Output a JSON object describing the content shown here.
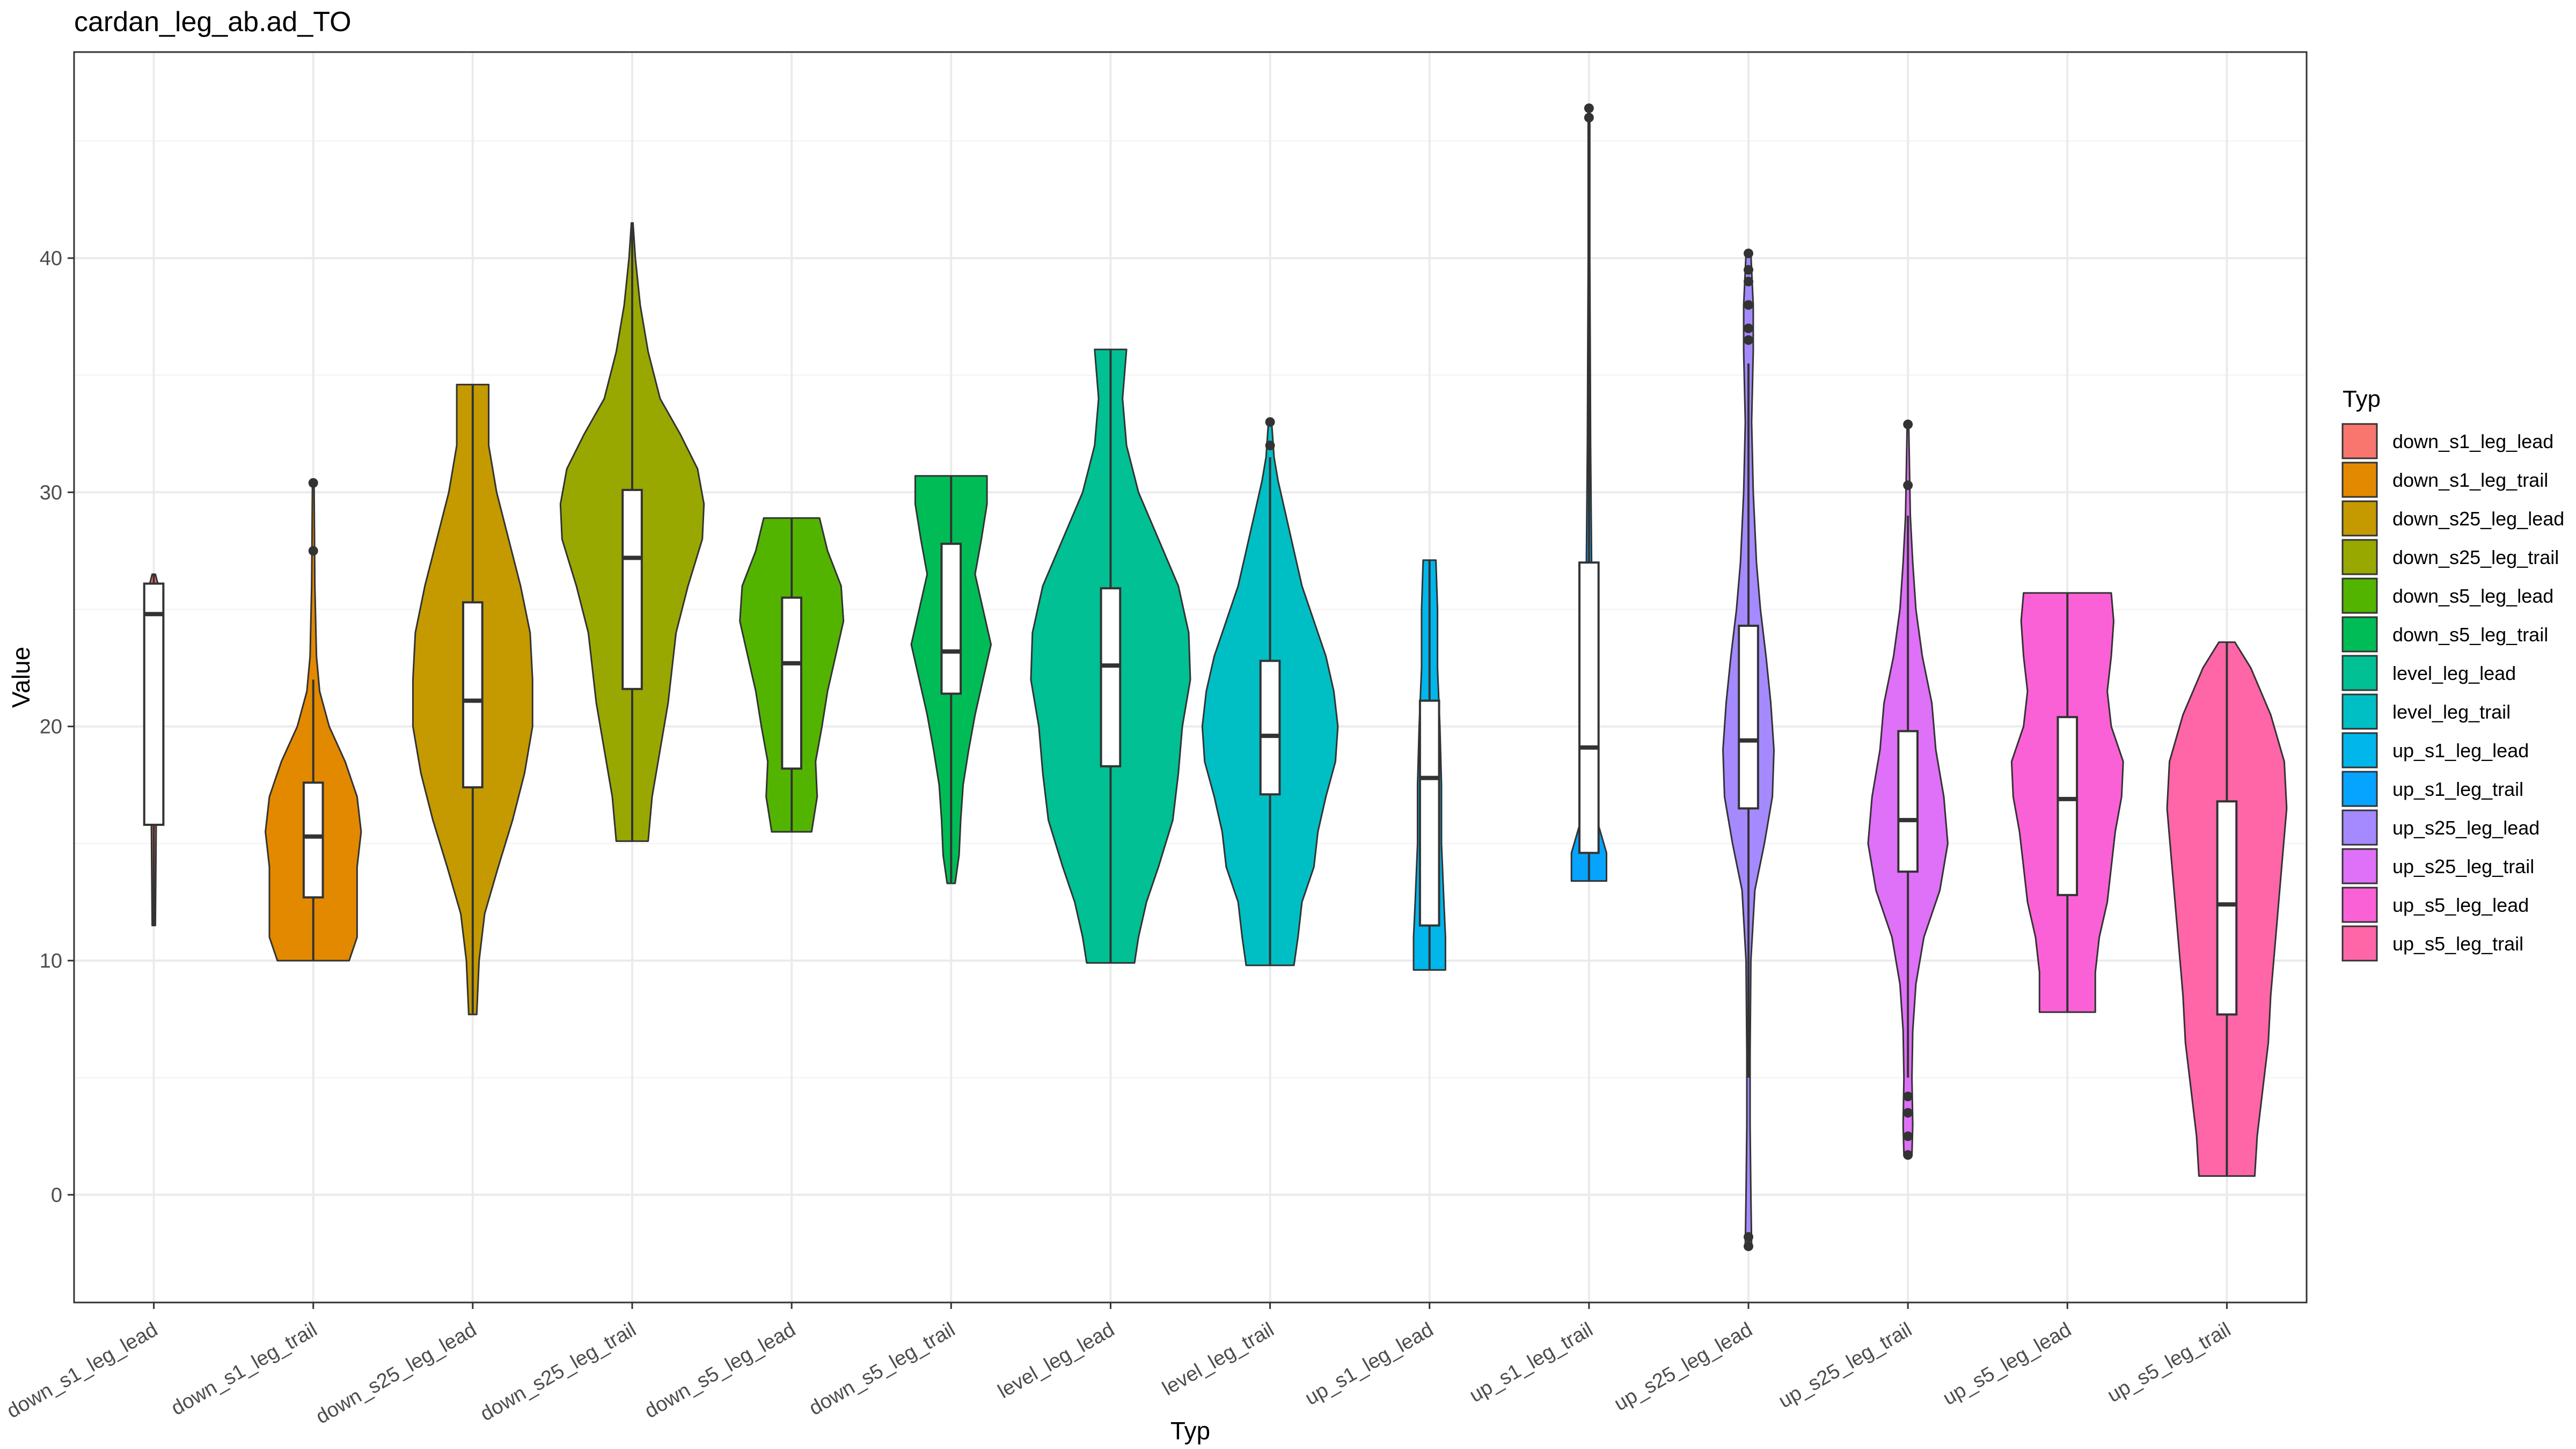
{
  "chart_data": {
    "type": "violin",
    "title": "cardan_leg_ab.ad_TO",
    "xlabel": "Typ",
    "ylabel": "Value",
    "ylim": [
      -4.6,
      48.8
    ],
    "yticks": [
      0,
      10,
      20,
      30,
      40
    ],
    "grid": true,
    "legend": {
      "title": "Typ",
      "position": "right"
    },
    "categories": [
      "down_s1_leg_lead",
      "down_s1_leg_trail",
      "down_s25_leg_lead",
      "down_s25_leg_trail",
      "down_s5_leg_lead",
      "down_s5_leg_trail",
      "level_leg_lead",
      "level_leg_trail",
      "up_s1_leg_lead",
      "up_s1_leg_trail",
      "up_s25_leg_lead",
      "up_s25_leg_trail",
      "up_s5_leg_lead",
      "up_s5_leg_trail"
    ],
    "colors": [
      "#F8766D",
      "#E38900",
      "#C49A00",
      "#99A800",
      "#53B400",
      "#00BC56",
      "#00C094",
      "#00BFC4",
      "#00B6EB",
      "#06A4FF",
      "#A58AFF",
      "#DF70F8",
      "#FB61D7",
      "#FF66A8"
    ],
    "series": [
      {
        "name": "down_s1_leg_lead",
        "min": 11.5,
        "max": 26.5,
        "q1": 15.8,
        "median": 24.8,
        "q3": 26.1,
        "whisker_low": 11.5,
        "whisker_high": 26.5,
        "outliers": [],
        "density": [
          [
            11.5,
            0.02
          ],
          [
            15.8,
            0.03
          ],
          [
            20,
            0.04
          ],
          [
            24.8,
            0.05
          ],
          [
            26.1,
            0.05
          ],
          [
            26.5,
            0.02
          ]
        ]
      },
      {
        "name": "down_s1_leg_trail",
        "min": 10.0,
        "max": 30.4,
        "q1": 12.7,
        "median": 15.3,
        "q3": 17.6,
        "whisker_low": 10.0,
        "whisker_high": 22.0,
        "outliers": [
          27.5,
          30.4
        ],
        "density": [
          [
            10,
            0.45
          ],
          [
            11,
            0.55
          ],
          [
            12.5,
            0.55
          ],
          [
            14,
            0.55
          ],
          [
            15.5,
            0.6
          ],
          [
            17,
            0.55
          ],
          [
            18.5,
            0.4
          ],
          [
            20,
            0.2
          ],
          [
            21.5,
            0.08
          ],
          [
            23,
            0.04
          ],
          [
            26,
            0.02
          ],
          [
            30.4,
            0.01
          ]
        ]
      },
      {
        "name": "down_s25_leg_lead",
        "min": 7.7,
        "max": 34.6,
        "q1": 17.4,
        "median": 21.1,
        "q3": 25.3,
        "whisker_low": 7.7,
        "whisker_high": 34.6,
        "outliers": [],
        "density": [
          [
            7.7,
            0.05
          ],
          [
            10,
            0.08
          ],
          [
            12,
            0.15
          ],
          [
            14,
            0.32
          ],
          [
            16,
            0.5
          ],
          [
            18,
            0.65
          ],
          [
            20,
            0.75
          ],
          [
            22,
            0.75
          ],
          [
            24,
            0.72
          ],
          [
            26,
            0.6
          ],
          [
            28,
            0.45
          ],
          [
            30,
            0.3
          ],
          [
            32,
            0.2
          ],
          [
            34.6,
            0.2
          ]
        ]
      },
      {
        "name": "down_s25_leg_trail",
        "min": 15.1,
        "max": 41.5,
        "q1": 21.6,
        "median": 27.2,
        "q3": 30.1,
        "whisker_low": 15.1,
        "whisker_high": 41.5,
        "outliers": [],
        "density": [
          [
            15.1,
            0.2
          ],
          [
            17,
            0.25
          ],
          [
            19,
            0.35
          ],
          [
            21,
            0.45
          ],
          [
            22.5,
            0.5
          ],
          [
            24,
            0.55
          ],
          [
            26,
            0.7
          ],
          [
            28,
            0.88
          ],
          [
            29.5,
            0.9
          ],
          [
            31,
            0.82
          ],
          [
            32.5,
            0.6
          ],
          [
            34,
            0.35
          ],
          [
            36,
            0.2
          ],
          [
            38,
            0.1
          ],
          [
            40,
            0.04
          ],
          [
            41.5,
            0.01
          ]
        ]
      },
      {
        "name": "down_s5_leg_lead",
        "min": 15.5,
        "max": 28.9,
        "q1": 18.2,
        "median": 22.7,
        "q3": 25.5,
        "whisker_low": 15.5,
        "whisker_high": 28.9,
        "outliers": [],
        "density": [
          [
            15.5,
            0.25
          ],
          [
            17,
            0.32
          ],
          [
            18.5,
            0.3
          ],
          [
            20,
            0.38
          ],
          [
            21.5,
            0.45
          ],
          [
            23,
            0.55
          ],
          [
            24.5,
            0.65
          ],
          [
            26,
            0.62
          ],
          [
            27.5,
            0.45
          ],
          [
            28.9,
            0.35
          ]
        ]
      },
      {
        "name": "down_s5_leg_trail",
        "min": 13.3,
        "max": 30.7,
        "q1": 21.4,
        "median": 23.2,
        "q3": 27.8,
        "whisker_low": 13.3,
        "whisker_high": 30.7,
        "outliers": [],
        "density": [
          [
            13.3,
            0.05
          ],
          [
            14.5,
            0.1
          ],
          [
            16,
            0.12
          ],
          [
            17.5,
            0.15
          ],
          [
            19,
            0.22
          ],
          [
            20.5,
            0.3
          ],
          [
            22,
            0.4
          ],
          [
            23.5,
            0.5
          ],
          [
            25,
            0.4
          ],
          [
            26.5,
            0.3
          ],
          [
            28,
            0.38
          ],
          [
            29.5,
            0.45
          ],
          [
            30.7,
            0.45
          ]
        ]
      },
      {
        "name": "level_leg_lead",
        "min": 9.9,
        "max": 36.1,
        "q1": 18.3,
        "median": 22.6,
        "q3": 25.9,
        "whisker_low": 9.9,
        "whisker_high": 36.1,
        "outliers": [],
        "density": [
          [
            9.9,
            0.3
          ],
          [
            11,
            0.35
          ],
          [
            12.5,
            0.45
          ],
          [
            14,
            0.6
          ],
          [
            16,
            0.78
          ],
          [
            18,
            0.85
          ],
          [
            20,
            0.9
          ],
          [
            22,
            1.0
          ],
          [
            24,
            0.98
          ],
          [
            26,
            0.85
          ],
          [
            28,
            0.6
          ],
          [
            30,
            0.35
          ],
          [
            32,
            0.2
          ],
          [
            34,
            0.15
          ],
          [
            36.1,
            0.2
          ]
        ]
      },
      {
        "name": "level_leg_trail",
        "min": 9.8,
        "max": 33.0,
        "q1": 17.1,
        "median": 19.6,
        "q3": 22.8,
        "whisker_low": 9.8,
        "whisker_high": 31.5,
        "outliers": [
          32.0,
          33.0
        ],
        "density": [
          [
            9.8,
            0.3
          ],
          [
            11,
            0.35
          ],
          [
            12.5,
            0.4
          ],
          [
            14,
            0.55
          ],
          [
            15.5,
            0.6
          ],
          [
            17,
            0.7
          ],
          [
            18.5,
            0.82
          ],
          [
            20,
            0.85
          ],
          [
            21.5,
            0.8
          ],
          [
            23,
            0.7
          ],
          [
            24.5,
            0.55
          ],
          [
            26,
            0.4
          ],
          [
            27.5,
            0.3
          ],
          [
            29,
            0.2
          ],
          [
            30.5,
            0.1
          ],
          [
            31.5,
            0.05
          ],
          [
            33,
            0.02
          ]
        ]
      },
      {
        "name": "up_s1_leg_lead",
        "min": 9.6,
        "max": 27.1,
        "q1": 11.5,
        "median": 17.8,
        "q3": 21.1,
        "whisker_low": 9.6,
        "whisker_high": 27.1,
        "outliers": [],
        "density": [
          [
            9.6,
            0.2
          ],
          [
            11,
            0.2
          ],
          [
            12.5,
            0.18
          ],
          [
            15,
            0.15
          ],
          [
            17.5,
            0.15
          ],
          [
            20,
            0.13
          ],
          [
            22.5,
            0.1
          ],
          [
            25,
            0.1
          ],
          [
            27.1,
            0.08
          ]
        ]
      },
      {
        "name": "up_s1_leg_trail",
        "min": 13.4,
        "max": 46.4,
        "q1": 14.6,
        "median": 19.1,
        "q3": 27.0,
        "whisker_low": 13.4,
        "whisker_high": 43.0,
        "outliers": [
          46.0,
          46.4
        ],
        "density": [
          [
            13.4,
            0.22
          ],
          [
            14.6,
            0.22
          ],
          [
            16,
            0.1
          ],
          [
            18,
            0.06
          ],
          [
            20,
            0.05
          ],
          [
            24,
            0.04
          ],
          [
            28,
            0.03
          ],
          [
            32,
            0.02
          ],
          [
            36,
            0.015
          ],
          [
            40,
            0.01
          ],
          [
            44,
            0.01
          ],
          [
            46.4,
            0.01
          ]
        ]
      },
      {
        "name": "up_s25_leg_lead",
        "min": -2.2,
        "max": 40.2,
        "q1": 16.5,
        "median": 19.4,
        "q3": 24.3,
        "whisker_low": 5.0,
        "whisker_high": 35.5,
        "outliers": [
          -2.2,
          -1.8,
          36.5,
          37.0,
          38.0,
          39.0,
          39.5,
          40.2
        ],
        "density": [
          [
            -2.2,
            0.04
          ],
          [
            0,
            0.03
          ],
          [
            3,
            0.02
          ],
          [
            6,
            0.02
          ],
          [
            10,
            0.03
          ],
          [
            13,
            0.08
          ],
          [
            15,
            0.2
          ],
          [
            17,
            0.3
          ],
          [
            19,
            0.32
          ],
          [
            21,
            0.28
          ],
          [
            23,
            0.22
          ],
          [
            25,
            0.15
          ],
          [
            27,
            0.1
          ],
          [
            30,
            0.06
          ],
          [
            33,
            0.04
          ],
          [
            36,
            0.06
          ],
          [
            38,
            0.06
          ],
          [
            40.2,
            0.03
          ]
        ]
      },
      {
        "name": "up_s25_leg_trail",
        "min": 1.7,
        "max": 32.9,
        "q1": 13.8,
        "median": 16.0,
        "q3": 19.8,
        "whisker_low": 5.0,
        "whisker_high": 29.0,
        "outliers": [
          1.7,
          2.5,
          3.5,
          4.2,
          30.3,
          32.9
        ],
        "density": [
          [
            1.7,
            0.05
          ],
          [
            3,
            0.06
          ],
          [
            5,
            0.05
          ],
          [
            7,
            0.06
          ],
          [
            9,
            0.1
          ],
          [
            11,
            0.2
          ],
          [
            13,
            0.4
          ],
          [
            15,
            0.5
          ],
          [
            17,
            0.45
          ],
          [
            19,
            0.35
          ],
          [
            21,
            0.3
          ],
          [
            23,
            0.18
          ],
          [
            25,
            0.1
          ],
          [
            27,
            0.06
          ],
          [
            29,
            0.03
          ],
          [
            32.9,
            0.01
          ]
        ]
      },
      {
        "name": "up_s5_leg_lead",
        "min": 7.8,
        "max": 25.7,
        "q1": 12.8,
        "median": 16.9,
        "q3": 20.4,
        "whisker_low": 7.8,
        "whisker_high": 25.7,
        "outliers": [],
        "density": [
          [
            7.8,
            0.35
          ],
          [
            9.5,
            0.35
          ],
          [
            11,
            0.4
          ],
          [
            12.5,
            0.5
          ],
          [
            14,
            0.55
          ],
          [
            15.5,
            0.6
          ],
          [
            17,
            0.68
          ],
          [
            18.5,
            0.7
          ],
          [
            20,
            0.55
          ],
          [
            21.5,
            0.5
          ],
          [
            23,
            0.55
          ],
          [
            24.5,
            0.58
          ],
          [
            25.7,
            0.55
          ]
        ]
      },
      {
        "name": "up_s5_leg_trail",
        "min": 0.8,
        "max": 23.6,
        "q1": 7.7,
        "median": 12.4,
        "q3": 16.8,
        "whisker_low": 0.8,
        "whisker_high": 23.6,
        "outliers": [],
        "density": [
          [
            0.8,
            0.35
          ],
          [
            2.5,
            0.38
          ],
          [
            4.5,
            0.45
          ],
          [
            6.5,
            0.52
          ],
          [
            8.5,
            0.55
          ],
          [
            10.5,
            0.6
          ],
          [
            12.5,
            0.65
          ],
          [
            14.5,
            0.7
          ],
          [
            16.5,
            0.75
          ],
          [
            18.5,
            0.72
          ],
          [
            20.5,
            0.55
          ],
          [
            22.5,
            0.3
          ],
          [
            23.6,
            0.1
          ]
        ]
      }
    ]
  }
}
